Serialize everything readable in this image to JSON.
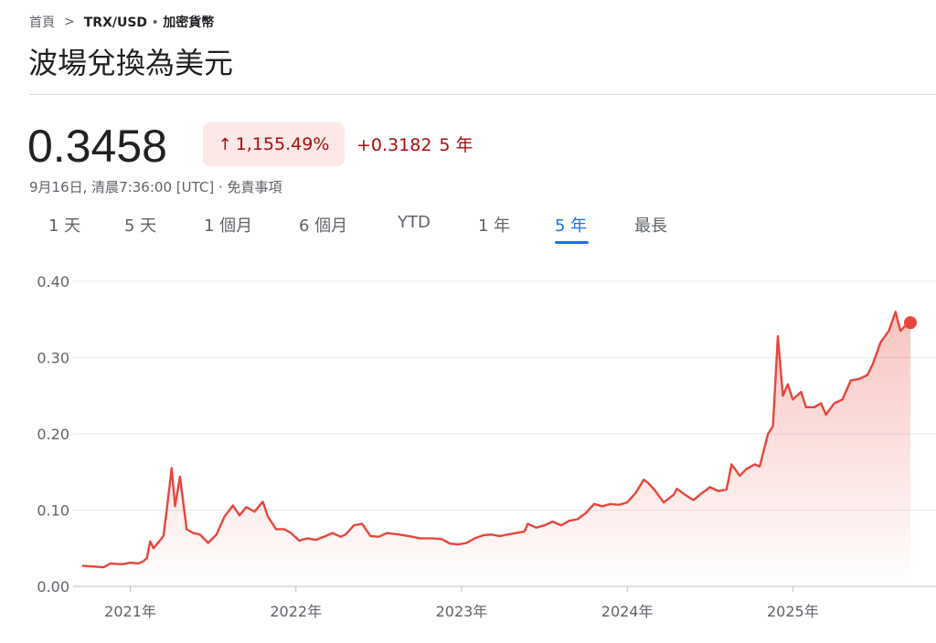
{
  "breadcrumb": {
    "home": "首頁",
    "pair": "TRX/USD",
    "category": "加密貨幣"
  },
  "title": "波場兌換為美元",
  "quote": {
    "price": "0.3458",
    "percent_change": "1,155.49%",
    "abs_change": "+0.3182",
    "period": "5 年",
    "timestamp": "9月16日, 清晨7:36:00 [UTC] · 免責事項"
  },
  "tabs": [
    "1 天",
    "5 天",
    "1 個月",
    "6 個月",
    "YTD",
    "1 年",
    "5 年",
    "最長"
  ],
  "active_tab": 6,
  "colors": {
    "line": "#e8453c",
    "accent": "#1a73e8",
    "negative_text": "#a50e0e",
    "badge_bg": "#fce8e6"
  },
  "chart_data": {
    "type": "area",
    "xlabel": "",
    "ylabel": "",
    "ylim": [
      0,
      0.4
    ],
    "yticks": [
      "0.00",
      "0.10",
      "0.20",
      "0.30",
      "0.40"
    ],
    "ytick_values": [
      0,
      0.1,
      0.2,
      0.3,
      0.4
    ],
    "xlim": [
      2020.71,
      2025.71
    ],
    "xticks": [
      "2021年",
      "2022年",
      "2023年",
      "2024年",
      "2025年"
    ],
    "xtick_values": [
      2021,
      2022,
      2023,
      2024,
      2025
    ],
    "grid": true,
    "series": [
      {
        "values": [
          [
            2020.71,
            0.027
          ],
          [
            2020.78,
            0.026
          ],
          [
            2020.84,
            0.025
          ],
          [
            2020.88,
            0.03
          ],
          [
            2020.95,
            0.029
          ],
          [
            2021.0,
            0.031
          ],
          [
            2021.05,
            0.03
          ],
          [
            2021.08,
            0.033
          ],
          [
            2021.1,
            0.037
          ],
          [
            2021.12,
            0.059
          ],
          [
            2021.14,
            0.05
          ],
          [
            2021.17,
            0.058
          ],
          [
            2021.2,
            0.066
          ],
          [
            2021.22,
            0.1
          ],
          [
            2021.25,
            0.155
          ],
          [
            2021.27,
            0.105
          ],
          [
            2021.3,
            0.144
          ],
          [
            2021.34,
            0.075
          ],
          [
            2021.38,
            0.07
          ],
          [
            2021.42,
            0.068
          ],
          [
            2021.47,
            0.057
          ],
          [
            2021.52,
            0.068
          ],
          [
            2021.57,
            0.092
          ],
          [
            2021.62,
            0.106
          ],
          [
            2021.66,
            0.093
          ],
          [
            2021.7,
            0.104
          ],
          [
            2021.75,
            0.098
          ],
          [
            2021.8,
            0.111
          ],
          [
            2021.83,
            0.092
          ],
          [
            2021.88,
            0.075
          ],
          [
            2021.93,
            0.075
          ],
          [
            2021.97,
            0.07
          ],
          [
            2022.02,
            0.06
          ],
          [
            2022.07,
            0.063
          ],
          [
            2022.12,
            0.061
          ],
          [
            2022.18,
            0.066
          ],
          [
            2022.22,
            0.07
          ],
          [
            2022.27,
            0.065
          ],
          [
            2022.3,
            0.068
          ],
          [
            2022.35,
            0.08
          ],
          [
            2022.4,
            0.082
          ],
          [
            2022.45,
            0.066
          ],
          [
            2022.5,
            0.065
          ],
          [
            2022.55,
            0.07
          ],
          [
            2022.62,
            0.068
          ],
          [
            2022.68,
            0.066
          ],
          [
            2022.75,
            0.063
          ],
          [
            2022.82,
            0.063
          ],
          [
            2022.88,
            0.062
          ],
          [
            2022.93,
            0.056
          ],
          [
            2022.98,
            0.055
          ],
          [
            2023.03,
            0.057
          ],
          [
            2023.08,
            0.063
          ],
          [
            2023.13,
            0.067
          ],
          [
            2023.18,
            0.068
          ],
          [
            2023.23,
            0.066
          ],
          [
            2023.28,
            0.068
          ],
          [
            2023.33,
            0.07
          ],
          [
            2023.38,
            0.072
          ],
          [
            2023.4,
            0.082
          ],
          [
            2023.45,
            0.077
          ],
          [
            2023.5,
            0.08
          ],
          [
            2023.55,
            0.085
          ],
          [
            2023.6,
            0.08
          ],
          [
            2023.65,
            0.086
          ],
          [
            2023.7,
            0.088
          ],
          [
            2023.75,
            0.096
          ],
          [
            2023.8,
            0.108
          ],
          [
            2023.85,
            0.105
          ],
          [
            2023.9,
            0.108
          ],
          [
            2023.95,
            0.107
          ],
          [
            2024.0,
            0.11
          ],
          [
            2024.05,
            0.122
          ],
          [
            2024.1,
            0.14
          ],
          [
            2024.13,
            0.135
          ],
          [
            2024.17,
            0.125
          ],
          [
            2024.22,
            0.11
          ],
          [
            2024.28,
            0.12
          ],
          [
            2024.3,
            0.128
          ],
          [
            2024.35,
            0.12
          ],
          [
            2024.4,
            0.113
          ],
          [
            2024.45,
            0.122
          ],
          [
            2024.5,
            0.13
          ],
          [
            2024.55,
            0.125
          ],
          [
            2024.6,
            0.127
          ],
          [
            2024.63,
            0.16
          ],
          [
            2024.68,
            0.145
          ],
          [
            2024.72,
            0.154
          ],
          [
            2024.77,
            0.16
          ],
          [
            2024.8,
            0.157
          ],
          [
            2024.85,
            0.2
          ],
          [
            2024.88,
            0.21
          ],
          [
            2024.91,
            0.328
          ],
          [
            2024.94,
            0.25
          ],
          [
            2024.97,
            0.265
          ],
          [
            2025.0,
            0.245
          ],
          [
            2025.05,
            0.255
          ],
          [
            2025.08,
            0.235
          ],
          [
            2025.13,
            0.235
          ],
          [
            2025.17,
            0.24
          ],
          [
            2025.2,
            0.225
          ],
          [
            2025.25,
            0.24
          ],
          [
            2025.3,
            0.245
          ],
          [
            2025.35,
            0.27
          ],
          [
            2025.4,
            0.272
          ],
          [
            2025.45,
            0.277
          ],
          [
            2025.48,
            0.29
          ],
          [
            2025.53,
            0.32
          ],
          [
            2025.58,
            0.335
          ],
          [
            2025.62,
            0.36
          ],
          [
            2025.65,
            0.335
          ],
          [
            2025.68,
            0.342
          ],
          [
            2025.71,
            0.3458
          ]
        ]
      }
    ],
    "last_point": [
      2025.71,
      0.3458
    ]
  }
}
